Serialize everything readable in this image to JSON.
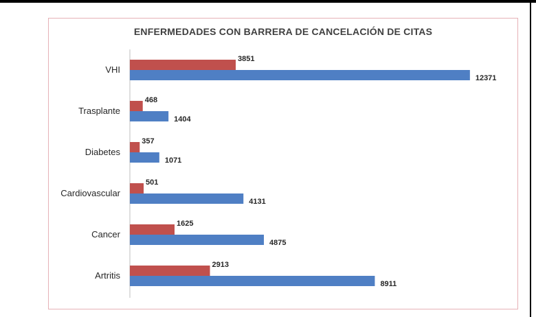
{
  "chart_data": {
    "type": "bar",
    "orientation": "horizontal",
    "title": "ENFERMEDADES CON BARRERA DE CANCELACIÓN DE CITAS",
    "categories": [
      "VHI",
      "Trasplante",
      "Diabetes",
      "Cardiovascular",
      "Cancer",
      "Artritis"
    ],
    "series": [
      {
        "values": [
          3851,
          468,
          357,
          501,
          1625,
          2913
        ],
        "color": "#c0504d"
      },
      {
        "values": [
          12371,
          1404,
          1071,
          4131,
          4875,
          8911
        ],
        "color": "#4f7fc4"
      }
    ],
    "xlim": [
      0,
      13500
    ],
    "grid": false,
    "legend": "none",
    "data_labels": true
  }
}
